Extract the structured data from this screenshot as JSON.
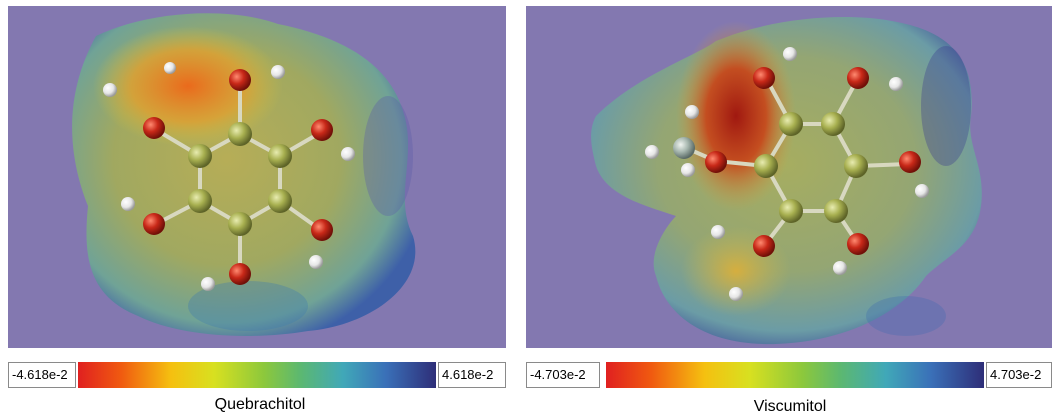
{
  "panels": [
    {
      "name": "Quebrachitol",
      "scale_min": "-4.618e-2",
      "scale_max": "4.618e-2"
    },
    {
      "name": "Viscumitol",
      "scale_min": "-4.703e-2",
      "scale_max": "4.703e-2"
    }
  ],
  "colors": {
    "background": "#8378b0",
    "oxygen": "#c82818",
    "carbon": "#a8b050",
    "hydrogen": "#f0f0f0",
    "methyl_carbon": "#a8b8b0"
  }
}
